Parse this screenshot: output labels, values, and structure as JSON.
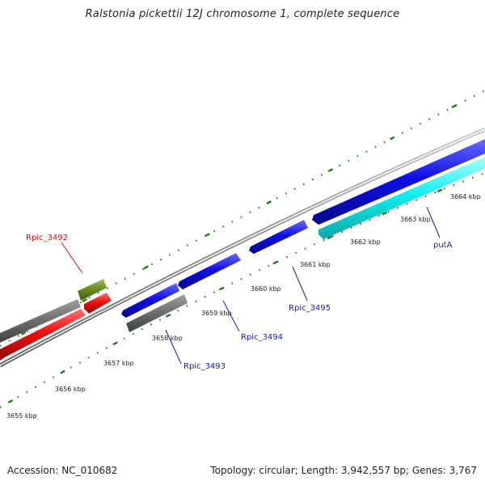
{
  "title": "Ralstonia pickettii 12J chromosome 1, complete sequence",
  "footer": {
    "accession": "Accession: NC_010682",
    "summary": "Topology: circular; Length: 3,942,557 bp; Genes: 3,767"
  },
  "colors": {
    "forward_cds": "#1010e6",
    "reverse_cds": "#ee1111",
    "gray_feature": "#707070",
    "olive_feature": "#6b8e23",
    "cyan_feature": "#11eeee",
    "tick": "#1e7a1e",
    "label_blue": "#1a1aa6",
    "label_red": "#cc1111"
  },
  "scale": {
    "ticks": [
      "3655 kbp",
      "3656 kbp",
      "3657 kbp",
      "3658 kbp",
      "3659 kbp",
      "3660 kbp",
      "3661 kbp",
      "3662 kbp",
      "3663 kbp",
      "3664 kbp"
    ]
  },
  "genes": [
    {
      "label": "Rpic_3492",
      "color": "label_red"
    },
    {
      "label": "Rpic_3493",
      "color": "label_blue"
    },
    {
      "label": "Rpic_3494",
      "color": "label_blue"
    },
    {
      "label": "Rpic_3495",
      "color": "label_blue"
    },
    {
      "label": "putA",
      "color": "label_blue"
    }
  ]
}
